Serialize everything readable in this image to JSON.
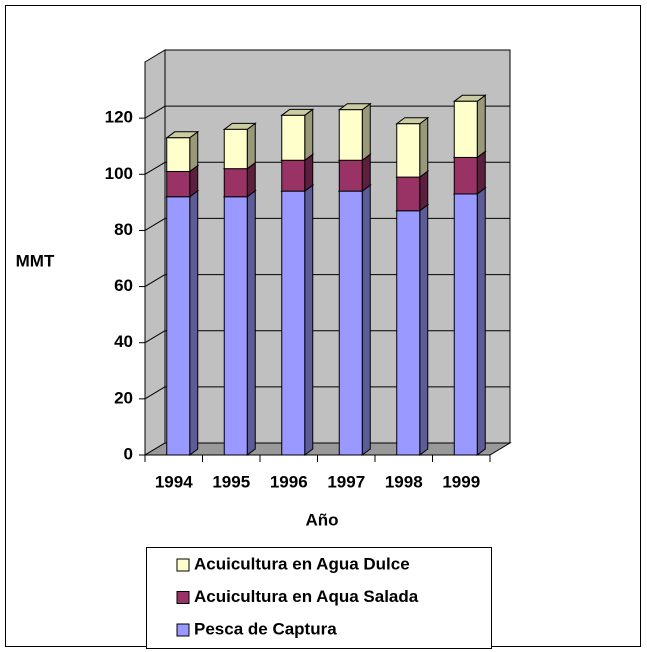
{
  "chart_data": {
    "type": "bar3d_stacked",
    "categories": [
      "1994",
      "1995",
      "1996",
      "1997",
      "1998",
      "1999"
    ],
    "series": [
      {
        "name": "Pesca de Captura",
        "color": "#9999ff",
        "values": [
          92,
          92,
          94,
          94,
          87,
          93
        ]
      },
      {
        "name": "Acuicultura en Aqua Salada",
        "color": "#993366",
        "values": [
          9,
          10,
          11,
          11,
          12,
          13
        ]
      },
      {
        "name": "Acuicultura en Agua Dulce",
        "color": "#ffffcc",
        "values": [
          12,
          14,
          16,
          18,
          19,
          20
        ]
      }
    ],
    "y_label": "MMT",
    "x_label": "Año",
    "ylim": [
      0,
      140
    ],
    "yticks": [
      0,
      20,
      40,
      60,
      80,
      100,
      120
    ],
    "grid": true,
    "wall_color": "#c0c0c0",
    "legend": "bottom"
  }
}
